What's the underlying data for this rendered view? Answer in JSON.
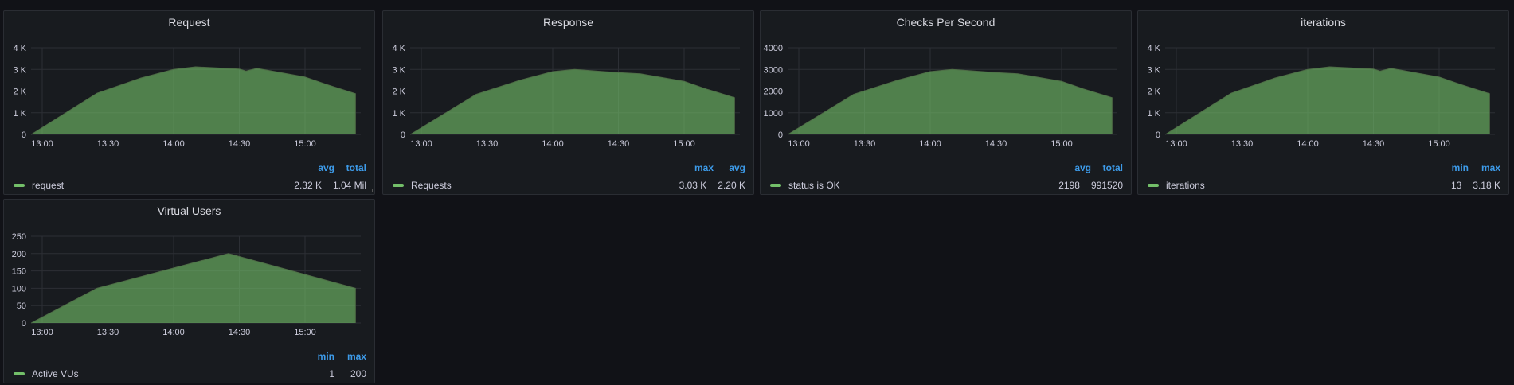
{
  "panels": [
    {
      "title": "Request",
      "ylim": [
        0,
        4000
      ],
      "yticks": [
        "0",
        "1 K",
        "2 K",
        "3 K",
        "4 K"
      ],
      "xticks": [
        "13:00",
        "13:30",
        "14:00",
        "14:30",
        "15:00"
      ],
      "legend": {
        "headers": [
          "avg",
          "total"
        ],
        "name": "request",
        "values": [
          "2.32 K",
          "1.04 Mil"
        ]
      },
      "series": [
        [
          "12:55",
          0
        ],
        [
          "13:25",
          1900
        ],
        [
          "13:45",
          2600
        ],
        [
          "14:00",
          3000
        ],
        [
          "14:10",
          3120
        ],
        [
          "14:30",
          3020
        ],
        [
          "14:33",
          2920
        ],
        [
          "14:38",
          3050
        ],
        [
          "15:00",
          2650
        ],
        [
          "15:10",
          2300
        ],
        [
          "15:23",
          1880
        ],
        [
          "15:23",
          0
        ]
      ]
    },
    {
      "title": "Response",
      "ylim": [
        0,
        4000
      ],
      "yticks": [
        "0",
        "1 K",
        "2 K",
        "3 K",
        "4 K"
      ],
      "xticks": [
        "13:00",
        "13:30",
        "14:00",
        "14:30",
        "15:00"
      ],
      "legend": {
        "headers": [
          "max",
          "avg"
        ],
        "name": "Requests",
        "values": [
          "3.03 K",
          "2.20 K"
        ]
      },
      "series": [
        [
          "12:55",
          0
        ],
        [
          "13:25",
          1850
        ],
        [
          "13:45",
          2500
        ],
        [
          "14:00",
          2900
        ],
        [
          "14:10",
          3000
        ],
        [
          "14:30",
          2850
        ],
        [
          "14:40",
          2800
        ],
        [
          "15:00",
          2450
        ],
        [
          "15:10",
          2100
        ],
        [
          "15:23",
          1700
        ],
        [
          "15:23",
          0
        ]
      ]
    },
    {
      "title": "Checks Per Second",
      "ylim": [
        0,
        4000
      ],
      "yticks": [
        "0",
        "1000",
        "2000",
        "3000",
        "4000"
      ],
      "xticks": [
        "13:00",
        "13:30",
        "14:00",
        "14:30",
        "15:00"
      ],
      "legend": {
        "headers": [
          "avg",
          "total"
        ],
        "name": "status is OK",
        "values": [
          "2198",
          "991520"
        ]
      },
      "series": [
        [
          "12:55",
          0
        ],
        [
          "13:25",
          1850
        ],
        [
          "13:45",
          2500
        ],
        [
          "14:00",
          2900
        ],
        [
          "14:10",
          3000
        ],
        [
          "14:30",
          2850
        ],
        [
          "14:40",
          2800
        ],
        [
          "15:00",
          2450
        ],
        [
          "15:10",
          2100
        ],
        [
          "15:23",
          1700
        ],
        [
          "15:23",
          0
        ]
      ]
    },
    {
      "title": "iterations",
      "ylim": [
        0,
        4000
      ],
      "yticks": [
        "0",
        "1 K",
        "2 K",
        "3 K",
        "4 K"
      ],
      "xticks": [
        "13:00",
        "13:30",
        "14:00",
        "14:30",
        "15:00"
      ],
      "legend": {
        "headers": [
          "min",
          "max"
        ],
        "name": "iterations",
        "values": [
          "13",
          "3.18 K"
        ]
      },
      "series": [
        [
          "12:55",
          0
        ],
        [
          "13:25",
          1900
        ],
        [
          "13:45",
          2600
        ],
        [
          "14:00",
          3000
        ],
        [
          "14:10",
          3120
        ],
        [
          "14:30",
          3020
        ],
        [
          "14:33",
          2920
        ],
        [
          "14:38",
          3050
        ],
        [
          "15:00",
          2650
        ],
        [
          "15:10",
          2300
        ],
        [
          "15:23",
          1880
        ],
        [
          "15:23",
          0
        ]
      ]
    },
    {
      "title": "Virtual Users",
      "ylim": [
        0,
        250
      ],
      "yticks": [
        "0",
        "50",
        "100",
        "150",
        "200",
        "250"
      ],
      "xticks": [
        "13:00",
        "13:30",
        "14:00",
        "14:30",
        "15:00"
      ],
      "legend": {
        "headers": [
          "min",
          "max"
        ],
        "name": "Active VUs",
        "values": [
          "1",
          "200"
        ]
      },
      "series": [
        [
          "12:55",
          0
        ],
        [
          "13:25",
          100
        ],
        [
          "14:25",
          200
        ],
        [
          "15:23",
          100
        ],
        [
          "15:23",
          0
        ]
      ]
    }
  ],
  "colors": {
    "fill": "#73bf69",
    "grid": "#2c2f35",
    "legend_header": "#3d9be9"
  }
}
